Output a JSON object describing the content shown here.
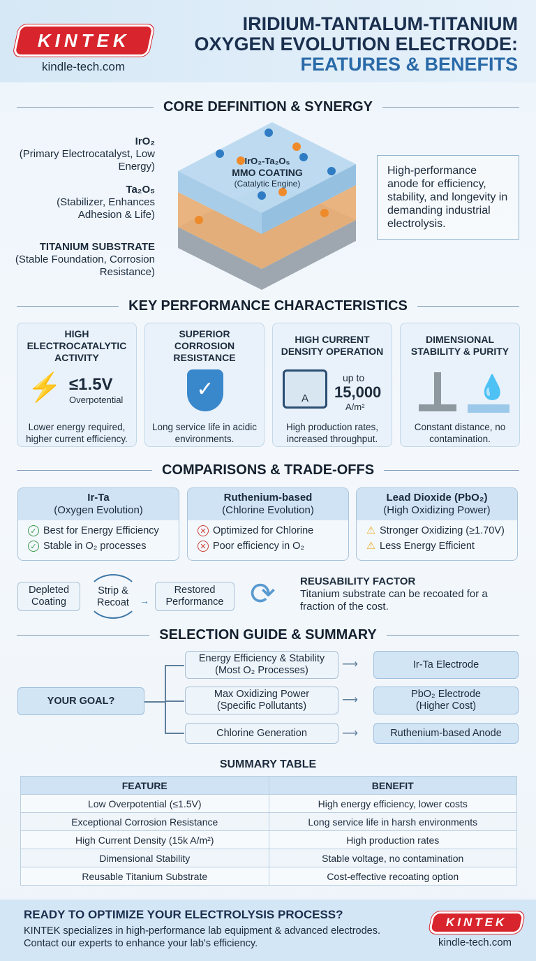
{
  "header": {
    "brand": "KINTEK",
    "site": "kindle-tech.com",
    "title_line1": "IRIDIUM-TANTALUM-TITANIUM",
    "title_line2": "OXYGEN EVOLUTION ELECTRODE:",
    "title_line3": "FEATURES & BENEFITS"
  },
  "core": {
    "heading": "CORE DEFINITION & SYNERGY",
    "iro2": {
      "name": "IrO₂",
      "desc": "(Primary Electrocatalyst, Low Energy)"
    },
    "ta2o5": {
      "name": "Ta₂O₅",
      "desc": "(Stabilizer, Enhances Adhesion & Life)"
    },
    "substrate": {
      "name": "TITANIUM SUBSTRATE",
      "desc": "(Stable Foundation, Corrosion Resistance)"
    },
    "coating": {
      "line1": "IrO₂-Ta₂O₅",
      "line2": "MMO COATING",
      "line3": "(Catalytic Engine)"
    },
    "callout": "High-performance anode for efficiency, stability, and longevity in demanding industrial electrolysis."
  },
  "kpc": {
    "heading": "KEY PERFORMANCE CHARACTERISTICS",
    "cards": [
      {
        "title": "HIGH ELECTROCATALYTIC ACTIVITY",
        "value": "≤1.5V",
        "unit": "Overpotential",
        "caption": "Lower energy required, higher current efficiency.",
        "icon": "lightning-icon"
      },
      {
        "title": "SUPERIOR CORROSION RESISTANCE",
        "caption": "Long service life in acidic environments.",
        "icon": "shield-check-icon"
      },
      {
        "title": "HIGH CURRENT DENSITY OPERATION",
        "prefix": "up to",
        "value": "15,000",
        "unit": "A/m²",
        "caption": "High production rates, increased throughput.",
        "icon": "ammeter-icon"
      },
      {
        "title": "DIMENSIONAL STABILITY & PURITY",
        "caption": "Constant distance, no contamination.",
        "icon": "electrode-droplet-icon"
      }
    ]
  },
  "comparisons": {
    "heading": "COMPARISONS & TRADE-OFFS",
    "cards": [
      {
        "name": "Ir-Ta",
        "sub": "(Oxygen Evolution)",
        "items": [
          "Best for Energy Efficiency",
          "Stable in O₂ processes"
        ],
        "icon": "check-circle-icon",
        "color": "#3a9a4a"
      },
      {
        "name": "Ruthenium-based",
        "sub": "(Chlorine Evolution)",
        "items": [
          "Optimized for Chlorine",
          "Poor efficiency in O₂"
        ],
        "icon": "x-circle-icon",
        "color": "#d0403a"
      },
      {
        "name": "Lead Dioxide (PbO₂)",
        "sub": "(High Oxidizing Power)",
        "items": [
          "Stronger Oxidizing (≥1.70V)",
          "Less Energy Efficient"
        ],
        "icon": "warning-icon",
        "color": "#e8a820"
      }
    ],
    "cycle": {
      "step1": "Depleted Coating",
      "step2": "Strip & Recoat",
      "step3": "Restored Performance"
    },
    "reuse": {
      "title": "REUSABILITY FACTOR",
      "text": "Titanium substrate can be recoated for a fraction of the cost."
    }
  },
  "selection": {
    "heading": "SELECTION GUIDE & SUMMARY",
    "goal": "YOUR GOAL?",
    "options": [
      {
        "need_line1": "Energy Efficiency & Stability",
        "need_line2": "(Most O₂ Processes)",
        "result_line1": "Ir-Ta Electrode",
        "result_line2": ""
      },
      {
        "need_line1": "Max Oxidizing Power",
        "need_line2": "(Specific Pollutants)",
        "result_line1": "PbO₂ Electrode",
        "result_line2": "(Higher Cost)"
      },
      {
        "need_line1": "Chlorine Generation",
        "need_line2": "",
        "result_line1": "Ruthenium-based Anode",
        "result_line2": ""
      }
    ]
  },
  "summary": {
    "heading": "SUMMARY TABLE",
    "columns": [
      "FEATURE",
      "BENEFIT"
    ],
    "rows": [
      [
        "Low Overpotential (≤1.5V)",
        "High energy efficiency, lower costs"
      ],
      [
        "Exceptional Corrosion Resistance",
        "Long service life in harsh environments"
      ],
      [
        "High Current Density (15k A/m²)",
        "High production rates"
      ],
      [
        "Dimensional Stability",
        "Stable voltage, no contamination"
      ],
      [
        "Reusable Titanium Substrate",
        "Cost-effective recoating option"
      ]
    ]
  },
  "footer": {
    "headline": "READY TO OPTIMIZE YOUR ELECTROLYSIS PROCESS?",
    "line1": "KINTEK specializes in high-performance lab equipment & advanced electrodes.",
    "line2": "Contact our experts to enhance your lab's efficiency.",
    "brand": "KINTEK",
    "site": "kindle-tech.com"
  }
}
